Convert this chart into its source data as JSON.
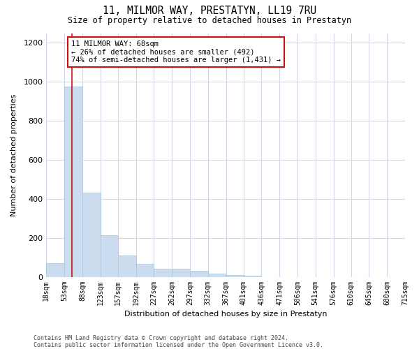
{
  "title": "11, MILMOR WAY, PRESTATYN, LL19 7RU",
  "subtitle": "Size of property relative to detached houses in Prestatyn",
  "xlabel": "Distribution of detached houses by size in Prestatyn",
  "ylabel": "Number of detached properties",
  "bar_color": "#ccdcef",
  "bar_edge_color": "#aac4df",
  "grid_color": "#d0d8e8",
  "annotation_line_color": "#cc1111",
  "annotation_box_edge_color": "#cc1111",
  "annotation_text_line1": "11 MILMOR WAY: 68sqm",
  "annotation_text_line2": "← 26% of detached houses are smaller (492)",
  "annotation_text_line3": "74% of semi-detached houses are larger (1,431) →",
  "property_size": 68,
  "bin_edges": [
    18,
    53,
    88,
    123,
    157,
    192,
    227,
    262,
    297,
    332,
    367,
    401,
    436,
    471,
    506,
    541,
    576,
    610,
    645,
    680,
    715
  ],
  "counts": [
    70,
    975,
    430,
    215,
    110,
    65,
    40,
    40,
    30,
    15,
    10,
    5,
    0,
    0,
    0,
    0,
    0,
    0,
    0,
    0
  ],
  "ylim": [
    0,
    1250
  ],
  "yticks": [
    0,
    200,
    400,
    600,
    800,
    1000,
    1200
  ],
  "footer_line1": "Contains HM Land Registry data © Crown copyright and database right 2024.",
  "footer_line2": "Contains public sector information licensed under the Open Government Licence v3.0.",
  "background_color": "#ffffff",
  "fig_width": 6.0,
  "fig_height": 5.0,
  "dpi": 100
}
